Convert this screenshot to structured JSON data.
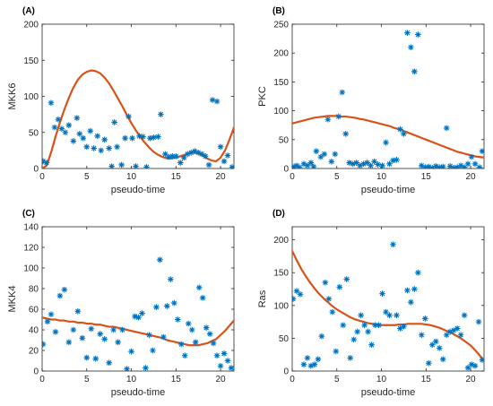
{
  "colors": {
    "points": "#0072BD",
    "fit": "#D95319",
    "axes": "#262626"
  },
  "chart_data": [
    {
      "panel_label": "(A)",
      "type": "scatter",
      "xlabel": "pseudo-time",
      "ylabel": "MKK6",
      "xlim": [
        0,
        21.5
      ],
      "ylim": [
        0,
        200
      ],
      "xticks": [
        0,
        5,
        10,
        15,
        20
      ],
      "yticks": [
        0,
        50,
        100,
        150,
        200
      ],
      "points": {
        "x": [
          0.1,
          0.5,
          1.0,
          1.4,
          1.8,
          2.2,
          2.6,
          3.0,
          3.5,
          3.9,
          4.2,
          4.6,
          5.0,
          5.4,
          5.8,
          6.2,
          6.6,
          7.0,
          7.5,
          7.8,
          8.1,
          8.4,
          8.9,
          9.3,
          9.7,
          10.1,
          10.5,
          10.9,
          11.3,
          11.7,
          12.1,
          12.5,
          13.0,
          13.3,
          13.8,
          14.2,
          14.6,
          15.0,
          15.5,
          15.9,
          16.3,
          16.7,
          17.1,
          17.5,
          17.9,
          18.3,
          18.7,
          19.1,
          19.6,
          20.0,
          20.4,
          20.8,
          21.3
        ],
        "y": [
          10,
          8,
          91,
          57,
          68,
          55,
          50,
          60,
          38,
          70,
          48,
          42,
          30,
          52,
          28,
          45,
          25,
          40,
          28,
          3,
          64,
          30,
          5,
          42,
          72,
          42,
          3,
          45,
          44,
          2,
          42,
          43,
          44,
          75,
          20,
          16,
          17,
          17,
          8,
          15,
          20,
          22,
          24,
          22,
          20,
          17,
          5,
          95,
          93,
          30,
          10,
          18,
          2
        ]
      },
      "fit": {
        "x": [
          0,
          0.5,
          1,
          1.5,
          2,
          2.5,
          3,
          3.5,
          4,
          4.5,
          5,
          5.5,
          6,
          6.5,
          7,
          7.5,
          8,
          8.5,
          9,
          9.5,
          10,
          10.5,
          11,
          11.5,
          12,
          12.5,
          13,
          13.5,
          14,
          14.5,
          15,
          15.5,
          16,
          16.5,
          17,
          17.5,
          18,
          18.5,
          19,
          19.5,
          20,
          20.5,
          21,
          21.5
        ],
        "y": [
          0,
          4,
          22,
          44,
          64,
          82,
          98,
          112,
          123,
          130,
          134,
          136,
          135,
          132,
          126,
          118,
          108,
          97,
          86,
          74,
          63,
          53,
          44,
          36,
          29,
          23,
          19,
          16,
          14,
          14,
          15,
          17,
          19,
          21,
          22,
          21,
          18,
          14,
          11,
          10,
          15,
          25,
          40,
          57
        ]
      }
    },
    {
      "panel_label": "(B)",
      "type": "scatter",
      "xlabel": "pseudo-time",
      "ylabel": "PKC",
      "xlim": [
        0,
        21.5
      ],
      "ylim": [
        0,
        250
      ],
      "xticks": [
        0,
        5,
        10,
        15,
        20
      ],
      "yticks": [
        0,
        50,
        100,
        150,
        200,
        250
      ],
      "points": {
        "x": [
          0.2,
          0.5,
          0.8,
          1.3,
          1.7,
          2.1,
          2.4,
          2.7,
          3.2,
          3.6,
          4.0,
          4.4,
          4.8,
          5.2,
          5.6,
          6.0,
          6.4,
          6.8,
          7.2,
          7.6,
          8.0,
          8.4,
          8.8,
          9.2,
          9.6,
          10.1,
          10.5,
          10.9,
          11.3,
          11.7,
          12.1,
          12.5,
          12.9,
          13.3,
          13.7,
          14.1,
          14.5,
          14.9,
          15.3,
          15.7,
          16.1,
          16.5,
          16.9,
          17.3,
          17.7,
          18.1,
          18.5,
          18.9,
          19.3,
          19.7,
          20.1,
          20.5,
          21.0,
          21.3
        ],
        "y": [
          3,
          5,
          2,
          8,
          5,
          10,
          3,
          30,
          20,
          25,
          85,
          12,
          25,
          90,
          132,
          60,
          10,
          8,
          10,
          5,
          8,
          10,
          5,
          12,
          7,
          5,
          45,
          8,
          14,
          15,
          68,
          60,
          235,
          210,
          168,
          232,
          5,
          2,
          3,
          1,
          4,
          2,
          3,
          70,
          4,
          1,
          2,
          5,
          2,
          8,
          20,
          8,
          2,
          30
        ]
      },
      "fit": {
        "x": [
          0,
          0.5,
          1,
          1.5,
          2,
          2.5,
          3,
          3.5,
          4,
          4.5,
          5,
          5.5,
          6,
          6.5,
          7,
          7.5,
          8,
          8.5,
          9,
          9.5,
          10,
          10.5,
          11,
          11.5,
          12,
          12.5,
          13,
          13.5,
          14,
          14.5,
          15,
          15.5,
          16,
          16.5,
          17,
          17.5,
          18,
          18.5,
          19,
          19.5,
          20,
          20.5,
          21,
          21.5
        ],
        "y": [
          78,
          80,
          82,
          84,
          86,
          88,
          89,
          90,
          91,
          91,
          91,
          90,
          90,
          89,
          88,
          86,
          85,
          83,
          81,
          79,
          77,
          75,
          73,
          70,
          68,
          65,
          62,
          59,
          56,
          53,
          50,
          47,
          44,
          41,
          38,
          35,
          32,
          29,
          27,
          25,
          23,
          21,
          20,
          19
        ]
      }
    },
    {
      "panel_label": "(C)",
      "type": "scatter",
      "xlabel": "pseudo-time",
      "ylabel": "MKK4",
      "xlim": [
        0,
        21.5
      ],
      "ylim": [
        0,
        140
      ],
      "xticks": [
        0,
        5,
        10,
        15,
        20
      ],
      "yticks": [
        0,
        20,
        40,
        60,
        80,
        100,
        120,
        140
      ],
      "points": {
        "x": [
          0.1,
          0.6,
          1.0,
          1.5,
          2.0,
          2.5,
          3.0,
          3.5,
          4.0,
          4.5,
          5.0,
          5.5,
          6.0,
          6.5,
          7.0,
          7.5,
          8.0,
          8.5,
          9.0,
          9.5,
          10.0,
          10.4,
          10.8,
          11.2,
          11.6,
          12.0,
          12.4,
          12.8,
          13.2,
          13.6,
          14.0,
          14.4,
          14.8,
          15.2,
          15.6,
          16.0,
          16.4,
          16.8,
          17.2,
          17.6,
          18.0,
          18.4,
          18.8,
          19.2,
          19.6,
          20.0,
          20.4,
          20.8,
          21.2
        ],
        "y": [
          26,
          48,
          55,
          38,
          73,
          79,
          28,
          40,
          58,
          32,
          13,
          41,
          12,
          36,
          31,
          8,
          40,
          28,
          40,
          2,
          19,
          53,
          52,
          56,
          3,
          35,
          20,
          62,
          108,
          33,
          63,
          89,
          66,
          50,
          26,
          15,
          46,
          40,
          28,
          81,
          71,
          42,
          36,
          27,
          15,
          5,
          17,
          10,
          3
        ]
      },
      "fit": {
        "x": [
          0,
          0.5,
          1,
          1.5,
          2,
          2.5,
          3,
          3.5,
          4,
          4.5,
          5,
          5.5,
          6,
          6.5,
          7,
          7.5,
          8,
          8.5,
          9,
          9.5,
          10,
          10.5,
          11,
          11.5,
          12,
          12.5,
          13,
          13.5,
          14,
          14.5,
          15,
          15.5,
          16,
          16.5,
          17,
          17.5,
          18,
          18.5,
          19,
          19.5,
          20,
          20.5,
          21,
          21.5
        ],
        "y": [
          52,
          51,
          50,
          50,
          49,
          49,
          48,
          48,
          47,
          47,
          46,
          46,
          45,
          45,
          44,
          43,
          43,
          42,
          41,
          40,
          39,
          38,
          37,
          36,
          35,
          34,
          33,
          32,
          30,
          29,
          28,
          27,
          26,
          25,
          25,
          25,
          26,
          27,
          29,
          31,
          35,
          39,
          44,
          49
        ]
      }
    },
    {
      "panel_label": "(D)",
      "type": "scatter",
      "xlabel": "pseudo-time",
      "ylabel": "Ras",
      "xlim": [
        0,
        21.5
      ],
      "ylim": [
        0,
        220
      ],
      "xticks": [
        0,
        5,
        10,
        15,
        20
      ],
      "yticks": [
        0,
        50,
        100,
        150,
        200
      ],
      "points": {
        "x": [
          0.1,
          0.5,
          0.9,
          1.3,
          1.7,
          2.1,
          2.5,
          2.9,
          3.3,
          3.7,
          4.1,
          4.5,
          4.9,
          5.3,
          5.7,
          6.1,
          6.5,
          6.9,
          7.3,
          7.7,
          8.1,
          8.5,
          8.9,
          9.3,
          9.7,
          10.1,
          10.5,
          10.9,
          11.3,
          11.7,
          12.1,
          12.5,
          12.9,
          13.3,
          13.7,
          14.1,
          14.5,
          14.9,
          15.3,
          15.7,
          16.1,
          16.5,
          16.9,
          17.3,
          17.7,
          18.1,
          18.5,
          18.9,
          19.3,
          19.7,
          20.1,
          20.5,
          20.9,
          21.3
        ],
        "y": [
          110,
          122,
          117,
          10,
          20,
          8,
          10,
          18,
          53,
          135,
          110,
          90,
          30,
          128,
          70,
          140,
          20,
          48,
          60,
          85,
          70,
          60,
          40,
          70,
          70,
          118,
          90,
          85,
          193,
          85,
          65,
          68,
          123,
          105,
          125,
          150,
          55,
          80,
          12,
          40,
          45,
          35,
          18,
          55,
          60,
          62,
          65,
          55,
          85,
          5,
          10,
          8,
          75,
          17
        ]
      },
      "fit": {
        "x": [
          0,
          0.5,
          1,
          1.5,
          2,
          2.5,
          3,
          3.5,
          4,
          4.5,
          5,
          5.5,
          6,
          6.5,
          7,
          7.5,
          8,
          8.5,
          9,
          9.5,
          10,
          10.5,
          11,
          11.5,
          12,
          12.5,
          13,
          13.5,
          14,
          14.5,
          15,
          15.5,
          16,
          16.5,
          17,
          17.5,
          18,
          18.5,
          19,
          19.5,
          20,
          20.5,
          21,
          21.5
        ],
        "y": [
          183,
          169,
          156,
          145,
          135,
          126,
          118,
          111,
          105,
          99,
          94,
          90,
          86,
          82,
          79,
          77,
          75,
          73,
          72,
          71,
          70,
          70,
          70,
          70,
          71,
          71,
          72,
          72,
          72,
          72,
          71,
          70,
          68,
          66,
          63,
          60,
          57,
          53,
          49,
          44,
          39,
          32,
          24,
          16
        ]
      }
    }
  ]
}
